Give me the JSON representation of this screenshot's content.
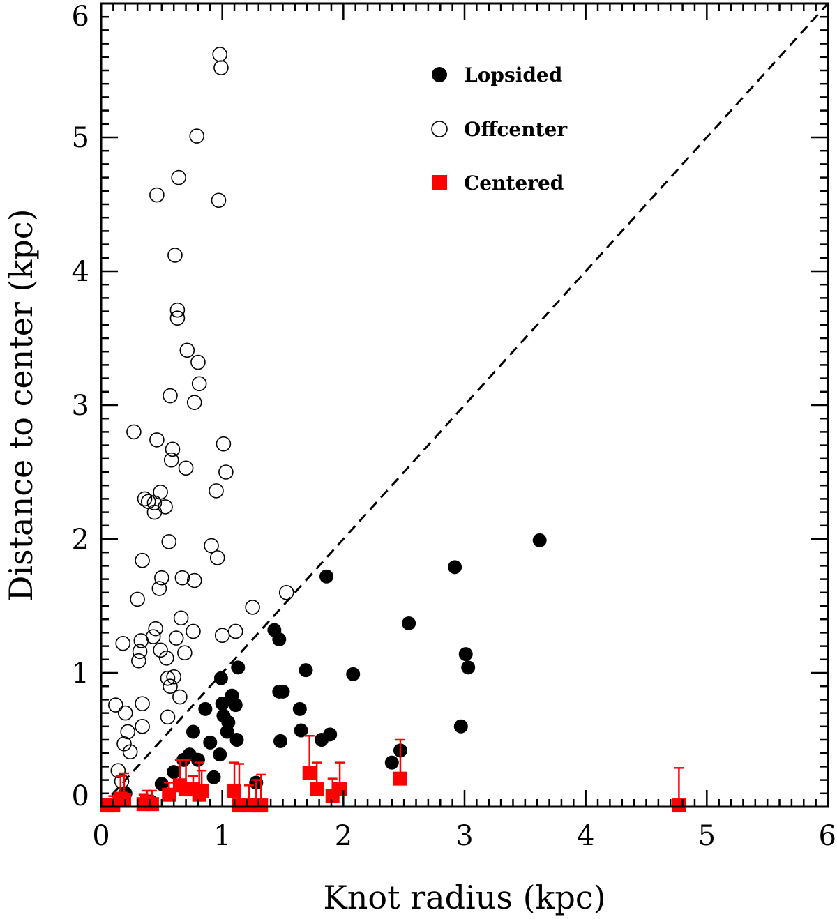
{
  "chart_data": {
    "type": "scatter",
    "title": "",
    "xlabel": "Knot radius (kpc)",
    "ylabel": "Distance to center (kpc)",
    "xlim": [
      0,
      6
    ],
    "ylim": [
      0,
      6
    ],
    "xticks": [
      "0",
      "1",
      "2",
      "3",
      "4",
      "5",
      "6"
    ],
    "yticks": [
      "0",
      "1",
      "2",
      "3",
      "4",
      "5",
      "6"
    ],
    "grid": false,
    "legend_position": "top-center",
    "reference_line": {
      "name": "one-to-one",
      "style": "dashed",
      "x": [
        0,
        6
      ],
      "y": [
        0,
        6
      ]
    },
    "series": [
      {
        "name": "Lopsided",
        "marker": "filled-circle",
        "color": "#000000",
        "points": [
          [
            0.2,
            0.1
          ],
          [
            0.41,
            0.04
          ],
          [
            0.5,
            0.17
          ],
          [
            0.6,
            0.26
          ],
          [
            0.68,
            0.35
          ],
          [
            0.73,
            0.39
          ],
          [
            0.76,
            0.56
          ],
          [
            0.8,
            0.35
          ],
          [
            0.86,
            0.73
          ],
          [
            0.9,
            0.48
          ],
          [
            0.93,
            0.22
          ],
          [
            0.98,
            0.39
          ],
          [
            0.99,
            0.96
          ],
          [
            1.0,
            0.77
          ],
          [
            1.01,
            0.68
          ],
          [
            1.04,
            0.56
          ],
          [
            1.05,
            0.63
          ],
          [
            1.08,
            0.83
          ],
          [
            1.11,
            0.76
          ],
          [
            1.12,
            0.5
          ],
          [
            1.13,
            1.04
          ],
          [
            1.28,
            0.18
          ],
          [
            1.43,
            1.32
          ],
          [
            1.47,
            1.25
          ],
          [
            1.47,
            0.86
          ],
          [
            1.48,
            0.49
          ],
          [
            1.5,
            0.86
          ],
          [
            1.64,
            0.73
          ],
          [
            1.65,
            0.57
          ],
          [
            1.69,
            1.02
          ],
          [
            1.82,
            0.5
          ],
          [
            1.86,
            1.72
          ],
          [
            1.89,
            0.54
          ],
          [
            2.08,
            0.99
          ],
          [
            2.4,
            0.33
          ],
          [
            2.47,
            0.42
          ],
          [
            2.54,
            1.37
          ],
          [
            2.92,
            1.79
          ],
          [
            2.97,
            0.6
          ],
          [
            3.01,
            1.14
          ],
          [
            3.03,
            1.04
          ],
          [
            3.62,
            1.99
          ]
        ]
      },
      {
        "name": "Offcenter",
        "marker": "open-circle",
        "color": "#000000",
        "points": [
          [
            0.12,
            0.76
          ],
          [
            0.14,
            0.27
          ],
          [
            0.17,
            0.19
          ],
          [
            0.18,
            1.22
          ],
          [
            0.19,
            0.47
          ],
          [
            0.2,
            0.7
          ],
          [
            0.22,
            0.56
          ],
          [
            0.24,
            0.41
          ],
          [
            0.27,
            2.8
          ],
          [
            0.3,
            1.55
          ],
          [
            0.31,
            1.09
          ],
          [
            0.32,
            1.16
          ],
          [
            0.33,
            1.24
          ],
          [
            0.34,
            1.84
          ],
          [
            0.34,
            0.77
          ],
          [
            0.34,
            0.6
          ],
          [
            0.36,
            2.3
          ],
          [
            0.39,
            2.28
          ],
          [
            0.43,
            1.27
          ],
          [
            0.44,
            2.27
          ],
          [
            0.44,
            2.2
          ],
          [
            0.45,
            1.33
          ],
          [
            0.46,
            4.57
          ],
          [
            0.46,
            2.74
          ],
          [
            0.48,
            1.63
          ],
          [
            0.49,
            1.17
          ],
          [
            0.49,
            2.35
          ],
          [
            0.5,
            1.71
          ],
          [
            0.53,
            2.24
          ],
          [
            0.54,
            1.11
          ],
          [
            0.55,
            0.96
          ],
          [
            0.55,
            0.67
          ],
          [
            0.56,
            1.98
          ],
          [
            0.57,
            3.07
          ],
          [
            0.57,
            0.9
          ],
          [
            0.58,
            2.59
          ],
          [
            0.59,
            2.67
          ],
          [
            0.6,
            0.97
          ],
          [
            0.61,
            4.12
          ],
          [
            0.62,
            1.26
          ],
          [
            0.63,
            3.71
          ],
          [
            0.63,
            3.65
          ],
          [
            0.64,
            4.7
          ],
          [
            0.65,
            0.82
          ],
          [
            0.66,
            1.41
          ],
          [
            0.67,
            1.71
          ],
          [
            0.69,
            1.15
          ],
          [
            0.7,
            2.53
          ],
          [
            0.71,
            3.41
          ],
          [
            0.76,
            1.31
          ],
          [
            0.77,
            3.02
          ],
          [
            0.77,
            1.69
          ],
          [
            0.79,
            5.01
          ],
          [
            0.8,
            3.32
          ],
          [
            0.81,
            3.16
          ],
          [
            0.91,
            1.95
          ],
          [
            0.95,
            2.36
          ],
          [
            0.96,
            1.86
          ],
          [
            0.97,
            4.53
          ],
          [
            0.98,
            5.62
          ],
          [
            0.99,
            5.52
          ],
          [
            1.0,
            1.28
          ],
          [
            1.01,
            2.71
          ],
          [
            1.03,
            2.5
          ],
          [
            1.11,
            1.31
          ],
          [
            1.25,
            1.49
          ],
          [
            1.53,
            1.6
          ]
        ]
      },
      {
        "name": "Centered",
        "marker": "filled-square",
        "color": "#ff0000",
        "points": [
          [
            0.05,
            0.01,
            0.05
          ],
          [
            0.1,
            0.01,
            0.07
          ],
          [
            0.16,
            0.06,
            0.17
          ],
          [
            0.19,
            0.05,
            0.2
          ],
          [
            0.35,
            0.02,
            0.07
          ],
          [
            0.38,
            0.03,
            0.09
          ],
          [
            0.42,
            0.02,
            0.1
          ],
          [
            0.56,
            0.09,
            0.09
          ],
          [
            0.65,
            0.16,
            0.19
          ],
          [
            0.7,
            0.13,
            0.22
          ],
          [
            0.76,
            0.13,
            0.1
          ],
          [
            0.81,
            0.09,
            0.24
          ],
          [
            0.83,
            0.12,
            0.15
          ],
          [
            1.1,
            0.12,
            0.21
          ],
          [
            1.14,
            0.01,
            0.31
          ],
          [
            1.22,
            0.01,
            0.15
          ],
          [
            1.28,
            0.01,
            0.19
          ],
          [
            1.32,
            0.01,
            0.23
          ],
          [
            1.72,
            0.25,
            0.28
          ],
          [
            1.78,
            0.13,
            0.2
          ],
          [
            1.91,
            0.08,
            0.13
          ],
          [
            1.97,
            0.13,
            0.2
          ],
          [
            2.47,
            0.21,
            0.29
          ],
          [
            4.77,
            0.01,
            0.28
          ]
        ]
      }
    ]
  }
}
